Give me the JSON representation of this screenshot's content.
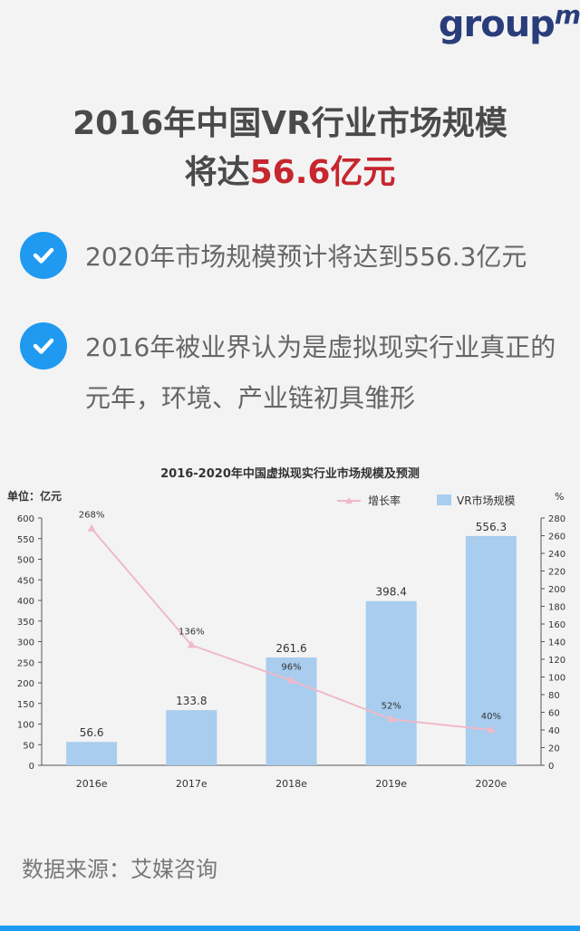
{
  "logo": {
    "text": "group",
    "suffix": "m"
  },
  "headline": {
    "line1": "2016年中国VR行业市场规模",
    "line2_prefix": "将达",
    "line2_highlight": "56.6亿元"
  },
  "bullets": [
    {
      "icon": "checkmark-circle-icon",
      "text": "2020年市场规模预计将达到556.3亿元"
    },
    {
      "icon": "checkmark-circle-icon",
      "line1": "2016年被业界认为是虚拟现实行业真正的",
      "line2": "元年，环境、产业链初具雏形"
    }
  ],
  "source": "数据来源：艾媒咨询",
  "colors": {
    "accent": "#1f9af0",
    "highlight": "#c6262e",
    "bar": "#a8cdee",
    "line": "#f0b9c8"
  },
  "chart_data": {
    "type": "bar",
    "title": "2016-2020年中国虚拟现实行业市场规模及预测",
    "left_unit": "单位：亿元",
    "right_unit": "%",
    "categories": [
      "2016e",
      "2017e",
      "2018e",
      "2019e",
      "2020e"
    ],
    "series": [
      {
        "name": "VR市场规模",
        "type": "bar",
        "axis": "left",
        "values": [
          56.6,
          133.8,
          261.6,
          398.4,
          556.3
        ],
        "labels": [
          "56.6",
          "133.8",
          "261.6",
          "398.4",
          "556.3"
        ]
      },
      {
        "name": "增长率",
        "type": "line",
        "axis": "right",
        "values": [
          268,
          136,
          96,
          52,
          40
        ],
        "labels": [
          "268%",
          "136%",
          "96%",
          "52%",
          "40%"
        ]
      }
    ],
    "ylim_left": [
      0,
      600
    ],
    "yticks_left": [
      0,
      50,
      100,
      150,
      200,
      250,
      300,
      350,
      400,
      450,
      500,
      550,
      600
    ],
    "ylim_right": [
      0,
      280
    ],
    "yticks_right": [
      0,
      20,
      40,
      60,
      80,
      100,
      120,
      140,
      160,
      180,
      200,
      220,
      240,
      260,
      280
    ],
    "legend": "top-right",
    "grid": false
  }
}
